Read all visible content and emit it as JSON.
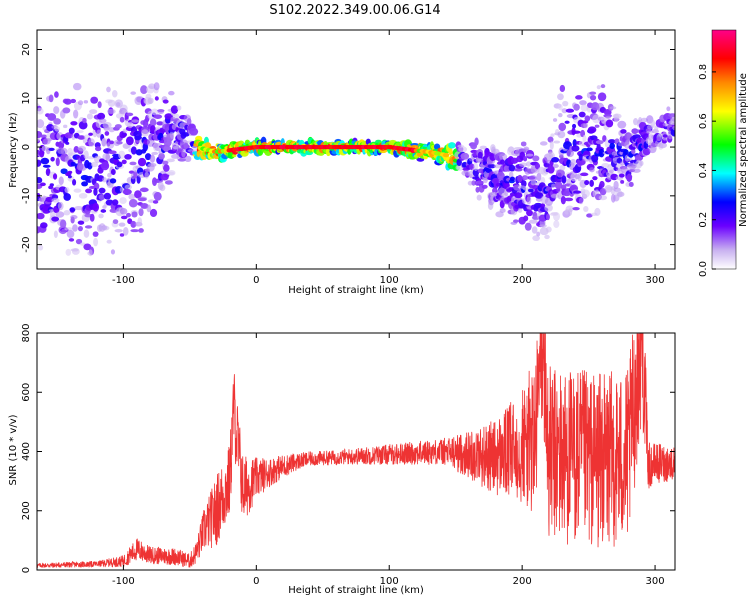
{
  "title": "S102.2022.349.00.06.G14",
  "colors": {
    "snr_line": "#ee3333",
    "colormap": [
      "#ffffff",
      "#c8b0f0",
      "#6a00ff",
      "#0000ff",
      "#00ffff",
      "#00ff00",
      "#ffff00",
      "#ff8800",
      "#ff0000",
      "#ff0088"
    ]
  },
  "chart_data": [
    {
      "type": "heatmap",
      "xlabel": "Height of straight line (km)",
      "ylabel": "Frequency (Hz)",
      "xlim": [
        -165,
        315
      ],
      "ylim": [
        -25,
        24
      ],
      "xticks": [
        -100,
        0,
        100,
        200,
        300
      ],
      "yticks": [
        -20,
        -10,
        0,
        10,
        20
      ],
      "colorbar": {
        "label": "Normalized spectral amplitude",
        "range": [
          0.0,
          0.97
        ],
        "ticks": [
          0.0,
          0.2,
          0.4,
          0.6,
          0.8
        ]
      },
      "signal_track": {
        "description_height_km": [
          -160,
          -120,
          -80,
          -60,
          -45,
          -30,
          0,
          50,
          100,
          130,
          150,
          170,
          200,
          215,
          230,
          260,
          280,
          300,
          315
        ],
        "frequency_hz": [
          -5,
          -6,
          -2,
          4,
          0,
          -1,
          0,
          0,
          0,
          -1,
          -2,
          -5,
          -8,
          -10,
          -2,
          0,
          -2,
          3,
          4
        ],
        "spread_hz": [
          14,
          14,
          12,
          6,
          2,
          1.5,
          1,
          1,
          1,
          1.5,
          2,
          5,
          7,
          7,
          12,
          10,
          6,
          3,
          3
        ]
      }
    },
    {
      "type": "line",
      "xlabel": "Height of straight line (km)",
      "ylabel": "SNR (10 * v/v)",
      "xlim": [
        -165,
        315
      ],
      "ylim": [
        0,
        800
      ],
      "xticks": [
        -100,
        0,
        100,
        200,
        300
      ],
      "yticks": [
        0,
        200,
        400,
        600,
        800
      ],
      "series": [
        {
          "x": [
            -165,
            -140,
            -120,
            -100,
            -90,
            -80,
            -60,
            -50,
            -45,
            -40,
            -30,
            -20,
            -17,
            -10,
            0,
            10,
            20,
            30,
            40,
            60,
            80,
            100,
            120,
            140,
            160,
            180,
            190,
            200,
            210,
            215,
            220,
            240,
            260,
            280,
            290,
            295,
            300,
            315
          ],
          "y": [
            15,
            18,
            20,
            30,
            70,
            50,
            45,
            30,
            60,
            130,
            200,
            300,
            550,
            270,
            310,
            330,
            350,
            365,
            375,
            380,
            385,
            390,
            395,
            400,
            390,
            380,
            400,
            420,
            440,
            800,
            390,
            380,
            370,
            380,
            800,
            350,
            360,
            360
          ],
          "amplitude": [
            8,
            10,
            10,
            20,
            40,
            30,
            30,
            25,
            40,
            70,
            120,
            130,
            150,
            120,
            70,
            50,
            40,
            30,
            25,
            25,
            30,
            35,
            40,
            45,
            80,
            130,
            160,
            200,
            280,
            300,
            300,
            300,
            300,
            300,
            300,
            80,
            70,
            60
          ]
        }
      ]
    }
  ]
}
